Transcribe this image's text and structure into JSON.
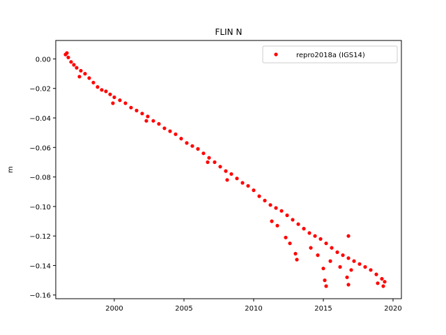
{
  "chart_data": {
    "type": "scatter",
    "title": "FLIN N",
    "xlabel": "",
    "ylabel": "m",
    "xlim": [
      1995.8,
      2020.6
    ],
    "ylim": [
      -0.1625,
      0.0125
    ],
    "xticks": [
      2000,
      2005,
      2010,
      2015,
      2020
    ],
    "xtick_labels": [
      "2000",
      "2005",
      "2010",
      "2015",
      "2020"
    ],
    "yticks": [
      0.0,
      -0.02,
      -0.04,
      -0.06,
      -0.08,
      -0.1,
      -0.12,
      -0.14,
      -0.16
    ],
    "ytick_labels": [
      "0.00",
      "−0.02",
      "−0.04",
      "−0.06",
      "−0.08",
      "−0.10",
      "−0.12",
      "−0.14",
      "−0.16"
    ],
    "grid": false,
    "legend_position": "top-right",
    "series": [
      {
        "name": "repro2018a (IGS14)",
        "color": "#ff0000",
        "marker": "dot",
        "points": [
          [
            1996.5,
            0.003
          ],
          [
            1996.6,
            0.004
          ],
          [
            1996.7,
            0.001
          ],
          [
            1996.9,
            -0.002
          ],
          [
            1997.1,
            -0.004
          ],
          [
            1997.3,
            -0.006
          ],
          [
            1997.6,
            -0.008
          ],
          [
            1997.9,
            -0.01
          ],
          [
            1998.2,
            -0.013
          ],
          [
            1998.5,
            -0.016
          ],
          [
            1998.8,
            -0.019
          ],
          [
            1999.1,
            -0.021
          ],
          [
            1999.4,
            -0.022
          ],
          [
            1999.7,
            -0.024
          ],
          [
            2000.0,
            -0.026
          ],
          [
            2000.4,
            -0.028
          ],
          [
            2000.8,
            -0.03
          ],
          [
            2001.2,
            -0.033
          ],
          [
            2001.6,
            -0.035
          ],
          [
            2002.0,
            -0.037
          ],
          [
            2002.4,
            -0.039
          ],
          [
            2002.8,
            -0.042
          ],
          [
            2003.2,
            -0.044
          ],
          [
            2003.6,
            -0.047
          ],
          [
            2004.0,
            -0.049
          ],
          [
            2004.4,
            -0.051
          ],
          [
            2004.8,
            -0.054
          ],
          [
            2005.2,
            -0.057
          ],
          [
            2005.6,
            -0.059
          ],
          [
            2006.0,
            -0.061
          ],
          [
            2006.4,
            -0.064
          ],
          [
            2006.8,
            -0.067
          ],
          [
            2007.2,
            -0.07
          ],
          [
            2007.6,
            -0.073
          ],
          [
            2008.0,
            -0.076
          ],
          [
            2008.4,
            -0.078
          ],
          [
            2008.8,
            -0.081
          ],
          [
            2009.2,
            -0.084
          ],
          [
            2009.6,
            -0.086
          ],
          [
            2010.0,
            -0.089
          ],
          [
            2010.4,
            -0.093
          ],
          [
            2010.8,
            -0.096
          ],
          [
            2011.2,
            -0.099
          ],
          [
            2011.6,
            -0.101
          ],
          [
            2012.0,
            -0.103
          ],
          [
            2012.4,
            -0.106
          ],
          [
            2012.8,
            -0.109
          ],
          [
            2013.2,
            -0.112
          ],
          [
            2013.6,
            -0.115
          ],
          [
            2014.0,
            -0.118
          ],
          [
            2014.4,
            -0.12
          ],
          [
            2014.8,
            -0.122
          ],
          [
            2015.2,
            -0.125
          ],
          [
            2015.6,
            -0.128
          ],
          [
            2016.0,
            -0.131
          ],
          [
            2016.4,
            -0.133
          ],
          [
            2016.8,
            -0.135
          ],
          [
            2017.2,
            -0.137
          ],
          [
            2017.6,
            -0.139
          ],
          [
            2018.0,
            -0.141
          ],
          [
            2018.4,
            -0.143
          ],
          [
            2018.8,
            -0.146
          ],
          [
            2019.2,
            -0.149
          ],
          [
            2019.4,
            -0.151
          ],
          [
            1997.5,
            -0.012
          ],
          [
            1999.9,
            -0.03
          ],
          [
            2002.3,
            -0.042
          ],
          [
            2006.7,
            -0.07
          ],
          [
            2008.1,
            -0.082
          ],
          [
            2011.3,
            -0.11
          ],
          [
            2011.7,
            -0.113
          ],
          [
            2012.3,
            -0.121
          ],
          [
            2012.6,
            -0.125
          ],
          [
            2013.0,
            -0.132
          ],
          [
            2013.1,
            -0.136
          ],
          [
            2014.1,
            -0.128
          ],
          [
            2014.6,
            -0.133
          ],
          [
            2015.0,
            -0.142
          ],
          [
            2015.1,
            -0.15
          ],
          [
            2015.2,
            -0.154
          ],
          [
            2015.5,
            -0.137
          ],
          [
            2016.2,
            -0.141
          ],
          [
            2016.7,
            -0.148
          ],
          [
            2016.8,
            -0.153
          ],
          [
            2017.0,
            -0.143
          ],
          [
            2016.8,
            -0.12
          ],
          [
            2018.9,
            -0.152
          ],
          [
            2019.3,
            -0.154
          ]
        ]
      }
    ]
  }
}
